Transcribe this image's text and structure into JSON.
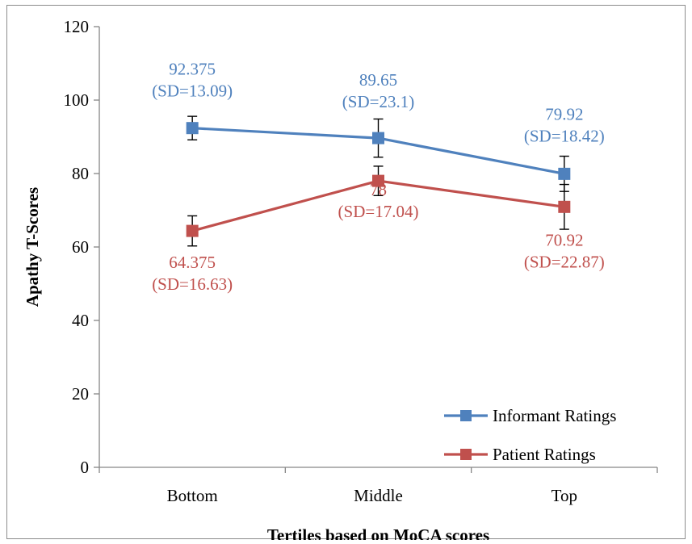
{
  "chart_data": {
    "type": "line",
    "categories": [
      "Bottom",
      "Middle",
      "Top"
    ],
    "xlabel": "Tertiles based on MoCA scores",
    "ylabel": "Apathy T-Scores",
    "ylim": [
      0,
      120
    ],
    "yticks": [
      0,
      20,
      40,
      60,
      80,
      100,
      120
    ],
    "grid": false,
    "legend_position": "bottom-right",
    "series": [
      {
        "name": "Informant Ratings",
        "color": "#4F81BD",
        "values": [
          92.375,
          89.65,
          79.92
        ],
        "error_minus": [
          3.2,
          5.2,
          4.8
        ],
        "error_plus": [
          3.2,
          5.2,
          4.8
        ],
        "labels": [
          [
            "92.375",
            "(SD=13.09)"
          ],
          [
            "89.65",
            "(SD=23.1)"
          ],
          [
            "79.92",
            "(SD=18.42)"
          ]
        ]
      },
      {
        "name": "Patient Ratings",
        "color": "#C0504D",
        "values": [
          64.375,
          78,
          70.92
        ],
        "error_minus": [
          4.1,
          4.0,
          6.1
        ],
        "error_plus": [
          4.1,
          4.0,
          6.1
        ],
        "labels": [
          [
            "64.375",
            "(SD=16.63)"
          ],
          [
            "78",
            "(SD=17.04)"
          ],
          [
            "70.92",
            "(SD=22.87)"
          ]
        ]
      }
    ]
  }
}
